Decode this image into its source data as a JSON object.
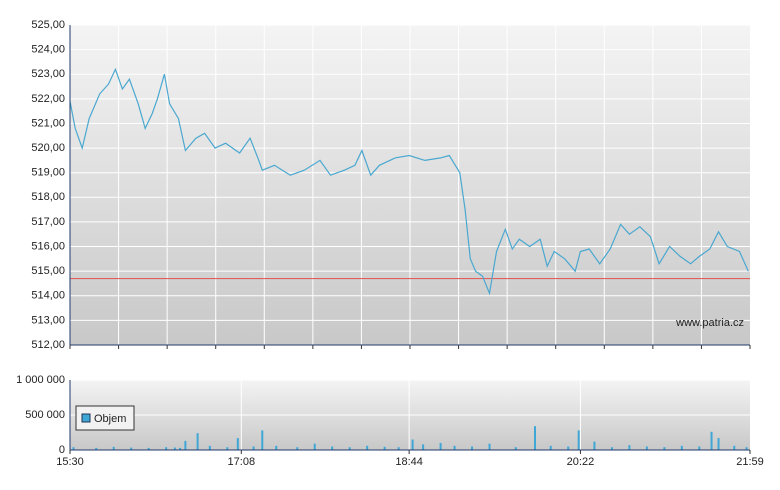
{
  "chart_data": [
    {
      "type": "line",
      "color": "#4aa8d0",
      "x": [
        "15:30",
        "15:33",
        "15:37",
        "15:41",
        "15:47",
        "15:52",
        "15:56",
        "16:00",
        "16:04",
        "16:09",
        "16:13",
        "16:17",
        "16:20",
        "16:24",
        "16:27",
        "16:32",
        "16:36",
        "16:42",
        "16:47",
        "16:53",
        "16:59",
        "17:07",
        "17:13",
        "17:18",
        "17:20",
        "17:27",
        "17:36",
        "17:44",
        "17:53",
        "17:59",
        "18:07",
        "18:13",
        "18:17",
        "18:22",
        "18:27",
        "18:36",
        "18:44",
        "18:53",
        "19:02",
        "19:07",
        "19:13",
        "19:16",
        "19:19",
        "19:22",
        "19:26",
        "19:30",
        "19:34",
        "19:39",
        "19:43",
        "19:47",
        "19:53",
        "19:59",
        "20:03",
        "20:07",
        "20:13",
        "20:19",
        "20:22",
        "20:27",
        "20:33",
        "20:39",
        "20:45",
        "20:50",
        "20:56",
        "21:02",
        "21:07",
        "21:13",
        "21:19",
        "21:25",
        "21:30",
        "21:36",
        "21:41",
        "21:46",
        "21:53",
        "21:58"
      ],
      "values": [
        521.9,
        520.8,
        520.0,
        521.2,
        522.2,
        522.6,
        523.2,
        522.4,
        522.8,
        521.8,
        520.8,
        521.4,
        522.0,
        523.0,
        521.8,
        521.2,
        519.9,
        520.4,
        520.6,
        520.0,
        520.2,
        519.8,
        520.4,
        519.5,
        519.1,
        519.3,
        518.9,
        519.1,
        519.5,
        518.9,
        519.1,
        519.3,
        519.9,
        518.9,
        519.3,
        519.6,
        519.7,
        519.5,
        519.6,
        519.7,
        519.0,
        517.5,
        515.5,
        515.0,
        514.8,
        514.1,
        515.8,
        516.7,
        515.9,
        516.3,
        516.0,
        516.3,
        515.2,
        515.8,
        515.5,
        515.0,
        515.8,
        515.9,
        515.3,
        515.9,
        516.9,
        516.5,
        516.8,
        516.4,
        515.3,
        516.0,
        515.6,
        515.3,
        515.6,
        515.9,
        516.6,
        516.0,
        515.8,
        515.0
      ],
      "xlim": [
        "15:30",
        "21:59"
      ],
      "ylim": [
        512,
        525
      ],
      "yticks": [
        {
          "value": 512,
          "label": "512,00"
        },
        {
          "value": 513,
          "label": "513,00"
        },
        {
          "value": 514,
          "label": "514,00"
        },
        {
          "value": 515,
          "label": "515,00"
        },
        {
          "value": 516,
          "label": "516,00"
        },
        {
          "value": 517,
          "label": "517,00"
        },
        {
          "value": 518,
          "label": "518,00"
        },
        {
          "value": 519,
          "label": "519,00"
        },
        {
          "value": 520,
          "label": "520,00"
        },
        {
          "value": 521,
          "label": "521,00"
        },
        {
          "value": 522,
          "label": "522,00"
        },
        {
          "value": 523,
          "label": "523,00"
        },
        {
          "value": 524,
          "label": "524,00"
        },
        {
          "value": 525,
          "label": "525,00"
        }
      ],
      "reference_line": {
        "value": 514.7,
        "color": "#e06060"
      },
      "watermark": "www.patria.cz",
      "grid": true
    },
    {
      "type": "bar",
      "series": [
        {
          "name": "Objem",
          "color": "#3fa7d6",
          "values": [
            40000,
            30000,
            45000,
            35000,
            30000,
            40000,
            35000,
            30000,
            130000,
            240000,
            60000,
            40000,
            170000,
            50000,
            280000,
            60000,
            40000,
            90000,
            50000,
            40000,
            60000,
            45000,
            40000,
            150000,
            80000,
            100000,
            60000,
            50000,
            90000,
            40000,
            340000,
            60000,
            50000,
            280000,
            120000,
            40000,
            70000,
            50000,
            40000,
            60000,
            50000,
            260000,
            170000,
            60000,
            40000
          ]
        }
      ],
      "x": [
        "15:32",
        "15:45",
        "15:55",
        "16:05",
        "16:15",
        "16:25",
        "16:30",
        "16:33",
        "16:36",
        "16:43",
        "16:50",
        "17:00",
        "17:06",
        "17:15",
        "17:20",
        "17:28",
        "17:40",
        "17:50",
        "18:00",
        "18:10",
        "18:20",
        "18:30",
        "18:38",
        "18:46",
        "18:52",
        "19:02",
        "19:10",
        "19:20",
        "19:30",
        "19:45",
        "19:56",
        "20:05",
        "20:15",
        "20:21",
        "20:30",
        "20:40",
        "20:50",
        "21:00",
        "21:10",
        "21:20",
        "21:30",
        "21:37",
        "21:41",
        "21:50",
        "21:57"
      ],
      "xlim": [
        "15:30",
        "21:59"
      ],
      "ylim": [
        0,
        1000000
      ],
      "yticks": [
        0,
        {
          "value": 500000,
          "label": "500 000"
        },
        {
          "value": 1000000,
          "label": "1 000 000"
        }
      ],
      "xticks": [
        "15:30",
        "17:08",
        "18:44",
        "20:22",
        "21:59"
      ],
      "grid": true
    }
  ]
}
